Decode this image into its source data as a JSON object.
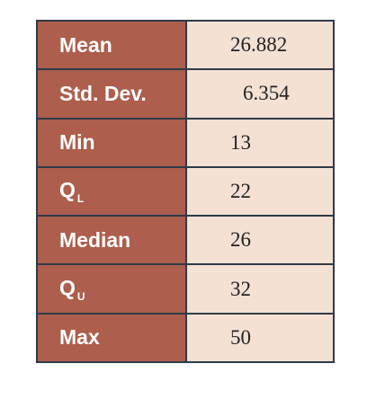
{
  "table": {
    "rows": [
      {
        "label": "Mean",
        "value": 26.882
      },
      {
        "label": "Std. Dev.",
        "value": 6.354
      },
      {
        "label": "Min",
        "value": 13
      },
      {
        "label": "Q",
        "sub": "L",
        "value": 22
      },
      {
        "label": "Median",
        "value": 26
      },
      {
        "label": "Q",
        "sub": "U",
        "value": 32
      },
      {
        "label": "Max",
        "value": 50
      }
    ]
  }
}
